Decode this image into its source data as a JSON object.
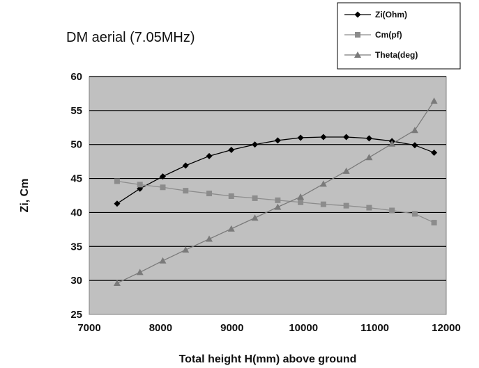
{
  "chart_data": {
    "type": "line",
    "title": "DM aerial (7.05MHz)",
    "xlabel": "Total height H(mm) above ground",
    "ylabel": "Zi, Cm",
    "xlim": [
      7000,
      12000
    ],
    "ylim": [
      25,
      60
    ],
    "x_ticks": [
      7000,
      8000,
      9000,
      10000,
      11000,
      12000
    ],
    "y_ticks": [
      25,
      30,
      35,
      40,
      45,
      50,
      55,
      60
    ],
    "grid": "horizontal",
    "legend_position": "top-right",
    "plot_background": "#c0c0c0",
    "series": [
      {
        "name": "Zi(Ohm)",
        "marker": "diamond",
        "color": "#000000",
        "x": [
          7390,
          7710,
          8030,
          8350,
          8680,
          8990,
          9320,
          9640,
          9960,
          10280,
          10600,
          10920,
          11240,
          11560,
          11830
        ],
        "values": [
          41.3,
          43.5,
          45.3,
          46.9,
          48.3,
          49.2,
          50.0,
          50.6,
          51.0,
          51.1,
          51.1,
          50.9,
          50.5,
          49.9,
          48.8
        ]
      },
      {
        "name": "Cm(pf)",
        "marker": "square",
        "color": "#8c8c8c",
        "x": [
          7390,
          7710,
          8030,
          8350,
          8680,
          8990,
          9320,
          9640,
          9960,
          10280,
          10600,
          10920,
          11240,
          11560,
          11830
        ],
        "values": [
          44.6,
          44.1,
          43.7,
          43.2,
          42.8,
          42.4,
          42.1,
          41.8,
          41.5,
          41.2,
          41.0,
          40.7,
          40.3,
          39.8,
          38.5
        ]
      },
      {
        "name": "Theta(deg)",
        "marker": "triangle",
        "color": "#7a7a7a",
        "x": [
          7390,
          7710,
          8030,
          8350,
          8680,
          8990,
          9320,
          9640,
          9960,
          10280,
          10600,
          10920,
          11240,
          11560,
          11830
        ],
        "values": [
          29.6,
          31.2,
          32.9,
          34.5,
          36.1,
          37.6,
          39.2,
          40.8,
          42.3,
          44.2,
          46.1,
          48.1,
          50.1,
          52.1,
          56.4
        ]
      }
    ]
  }
}
